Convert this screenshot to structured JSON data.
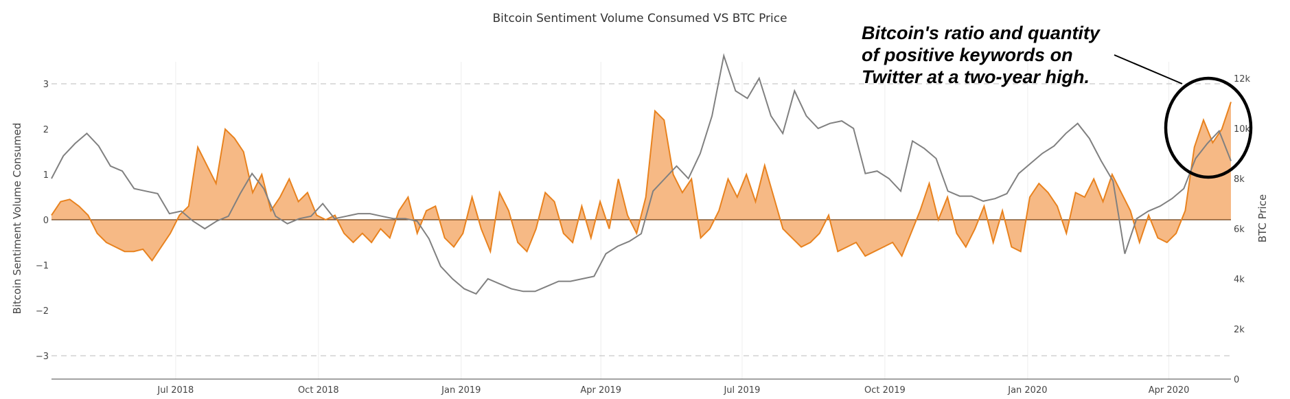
{
  "chart_data": {
    "type": "area",
    "title": "Bitcoin Sentiment Volume Consumed VS BTC Price",
    "ylabel": "Bitcoin Sentiment Volume Consumed",
    "y2label": "BTC Price",
    "xlabel": "",
    "xrange": [
      "2018-04-12",
      "2020-05-11"
    ],
    "ylim": [
      -3.5,
      3.5
    ],
    "y2lim": [
      0,
      12800
    ],
    "x_ticks": [
      {
        "label": "Jul 2018",
        "date": "2018-07-01"
      },
      {
        "label": "Oct 2018",
        "date": "2018-10-01"
      },
      {
        "label": "Jan 2019",
        "date": "2019-01-01"
      },
      {
        "label": "Apr 2019",
        "date": "2019-04-01"
      },
      {
        "label": "Jul 2019",
        "date": "2019-07-01"
      },
      {
        "label": "Oct 2019",
        "date": "2019-10-01"
      },
      {
        "label": "Jan 2020",
        "date": "2020-01-01"
      },
      {
        "label": "Apr 2020",
        "date": "2020-04-01"
      }
    ],
    "y_ticks": [
      {
        "label": "3",
        "value": 3
      },
      {
        "label": "2",
        "value": 2
      },
      {
        "label": "1",
        "value": 1
      },
      {
        "label": "0",
        "value": 0
      },
      {
        "label": "−1",
        "value": -1
      },
      {
        "label": "−2",
        "value": -2
      },
      {
        "label": "−3",
        "value": -3
      }
    ],
    "y2_ticks": [
      {
        "label": "12k",
        "value": 12000
      },
      {
        "label": "10k",
        "value": 10000
      },
      {
        "label": "8k",
        "value": 8000
      },
      {
        "label": "6k",
        "value": 6000
      },
      {
        "label": "4k",
        "value": 4000
      },
      {
        "label": "2k",
        "value": 2000
      },
      {
        "label": "0",
        "value": 0
      }
    ],
    "dashed_reference_lines": [
      3,
      -3
    ],
    "series": [
      {
        "name": "Bitcoin Sentiment Volume Consumed",
        "axis": "left",
        "kind": "area-to-zero",
        "color": "#e8821e",
        "fill": "#f5b57e",
        "start": "2018-04-12",
        "end": "2020-05-11",
        "values": [
          0.1,
          0.4,
          0.45,
          0.3,
          0.1,
          -0.3,
          -0.5,
          -0.6,
          -0.7,
          -0.7,
          -0.65,
          -0.9,
          -0.6,
          -0.3,
          0.1,
          0.3,
          1.6,
          1.2,
          0.8,
          2.0,
          1.8,
          1.5,
          0.6,
          1.0,
          0.2,
          0.5,
          0.9,
          0.4,
          0.6,
          0.1,
          0.0,
          0.1,
          -0.3,
          -0.5,
          -0.3,
          -0.5,
          -0.2,
          -0.4,
          0.2,
          0.5,
          -0.3,
          0.2,
          0.3,
          -0.4,
          -0.6,
          -0.3,
          0.5,
          -0.2,
          -0.7,
          0.6,
          0.2,
          -0.5,
          -0.7,
          -0.2,
          0.6,
          0.4,
          -0.3,
          -0.5,
          0.3,
          -0.4,
          0.4,
          -0.2,
          0.9,
          0.1,
          -0.3,
          0.5,
          2.4,
          2.2,
          1.0,
          0.6,
          0.9,
          -0.4,
          -0.2,
          0.2,
          0.9,
          0.5,
          1.0,
          0.4,
          1.2,
          0.5,
          -0.2,
          -0.4,
          -0.6,
          -0.5,
          -0.3,
          0.1,
          -0.7,
          -0.6,
          -0.5,
          -0.8,
          -0.7,
          -0.6,
          -0.5,
          -0.8,
          -0.3,
          0.2,
          0.8,
          0.0,
          0.5,
          -0.3,
          -0.6,
          -0.2,
          0.3,
          -0.5,
          0.2,
          -0.6,
          -0.7,
          0.5,
          0.8,
          0.6,
          0.3,
          -0.3,
          0.6,
          0.5,
          0.9,
          0.4,
          1.0,
          0.6,
          0.2,
          -0.5,
          0.1,
          -0.4,
          -0.5,
          -0.3,
          0.2,
          1.6,
          2.2,
          1.7,
          2.0,
          2.6
        ]
      },
      {
        "name": "BTC Price",
        "axis": "right",
        "kind": "line",
        "color": "#808080",
        "start": "2018-04-12",
        "end": "2020-05-11",
        "values": [
          8000,
          8900,
          9400,
          9800,
          9300,
          8500,
          8300,
          7600,
          7500,
          7400,
          6600,
          6700,
          6300,
          6000,
          6300,
          6500,
          7400,
          8200,
          7600,
          6500,
          6200,
          6400,
          6500,
          7000,
          6400,
          6500,
          6600,
          6600,
          6500,
          6400,
          6400,
          6300,
          5600,
          4500,
          4000,
          3600,
          3400,
          4000,
          3800,
          3600,
          3500,
          3500,
          3700,
          3900,
          3900,
          4000,
          4100,
          5000,
          5300,
          5500,
          5800,
          7500,
          8000,
          8500,
          8000,
          9000,
          10500,
          12900,
          11500,
          11200,
          12000,
          10500,
          9800,
          11500,
          10500,
          10000,
          10200,
          10300,
          10000,
          8200,
          8300,
          8000,
          7500,
          9500,
          9200,
          8800,
          7500,
          7300,
          7300,
          7100,
          7200,
          7400,
          8200,
          8600,
          9000,
          9300,
          9800,
          10200,
          9600,
          8700,
          7900,
          5000,
          6400,
          6700,
          6900,
          7200,
          7600,
          8800,
          9400,
          9900,
          8700
        ]
      }
    ],
    "annotation": {
      "lines": [
        "Bitcoin's ratio and quantity",
        "of positive keywords on",
        "Twitter at a two-year high."
      ]
    }
  }
}
